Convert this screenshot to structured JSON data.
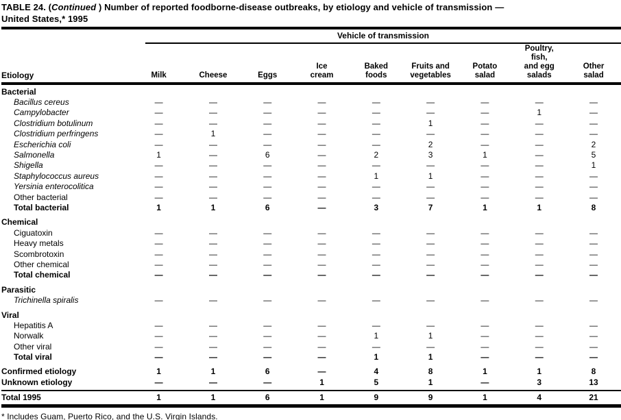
{
  "title": {
    "prefix": "TABLE 24. (",
    "italic": "Continued",
    "suffix": " ) Number of reported foodborne-disease outbreaks, by etiology and vehicle of transmission —\nUnited States,* 1995"
  },
  "table": {
    "spanner": "Vehicle of transmission",
    "etiology_header": "Etiology",
    "columns": [
      "Milk",
      "Cheese",
      "Eggs",
      "Ice\ncream",
      "Baked\nfoods",
      "Fruits and\nvegetables",
      "Potato\nsalad",
      "Poultry,\nfish,\nand egg\nsalads",
      "Other\nsalad"
    ],
    "rows": [
      {
        "label": "Bacterial",
        "style": "section",
        "indent": false,
        "gap": false,
        "values": []
      },
      {
        "label": "Bacillus cereus",
        "style": "species",
        "indent": true,
        "gap": false,
        "values": [
          "—",
          "—",
          "—",
          "—",
          "—",
          "—",
          "—",
          "—",
          "—"
        ]
      },
      {
        "label": "Campylobacter",
        "style": "species",
        "indent": true,
        "gap": false,
        "values": [
          "—",
          "—",
          "—",
          "—",
          "—",
          "—",
          "—",
          "1",
          "—"
        ]
      },
      {
        "label": "Clostridium botulinum",
        "style": "species",
        "indent": true,
        "gap": false,
        "values": [
          "—",
          "—",
          "—",
          "—",
          "—",
          "1",
          "—",
          "—",
          "—"
        ]
      },
      {
        "label": "Clostridium perfringens",
        "style": "species",
        "indent": true,
        "gap": false,
        "values": [
          "—",
          "1",
          "—",
          "—",
          "—",
          "—",
          "—",
          "—",
          "—"
        ]
      },
      {
        "label": "Escherichia coli",
        "style": "species",
        "indent": true,
        "gap": false,
        "values": [
          "—",
          "—",
          "—",
          "—",
          "—",
          "2",
          "—",
          "—",
          "2"
        ]
      },
      {
        "label": "Salmonella",
        "style": "species",
        "indent": true,
        "gap": false,
        "values": [
          "1",
          "—",
          "6",
          "—",
          "2",
          "3",
          "1",
          "—",
          "5"
        ]
      },
      {
        "label": "Shigella",
        "style": "species",
        "indent": true,
        "gap": false,
        "values": [
          "—",
          "—",
          "—",
          "—",
          "—",
          "—",
          "—",
          "—",
          "1"
        ]
      },
      {
        "label": "Staphylococcus aureus",
        "style": "species",
        "indent": true,
        "gap": false,
        "values": [
          "—",
          "—",
          "—",
          "—",
          "1",
          "1",
          "—",
          "—",
          "—"
        ]
      },
      {
        "label": "Yersinia enterocolitica",
        "style": "species",
        "indent": true,
        "gap": false,
        "values": [
          "—",
          "—",
          "—",
          "—",
          "—",
          "—",
          "—",
          "—",
          "—"
        ]
      },
      {
        "label": "Other bacterial",
        "style": "plain",
        "indent": true,
        "gap": false,
        "values": [
          "—",
          "—",
          "—",
          "—",
          "—",
          "—",
          "—",
          "—",
          "—"
        ]
      },
      {
        "label": "Total bacterial",
        "style": "total",
        "indent": true,
        "gap": false,
        "values": [
          "1",
          "1",
          "6",
          "—",
          "3",
          "7",
          "1",
          "1",
          "8"
        ]
      },
      {
        "label": "Chemical",
        "style": "section",
        "indent": false,
        "gap": true,
        "values": []
      },
      {
        "label": "Ciguatoxin",
        "style": "plain",
        "indent": true,
        "gap": false,
        "values": [
          "—",
          "—",
          "—",
          "—",
          "—",
          "—",
          "—",
          "—",
          "—"
        ]
      },
      {
        "label": "Heavy metals",
        "style": "plain",
        "indent": true,
        "gap": false,
        "values": [
          "—",
          "—",
          "—",
          "—",
          "—",
          "—",
          "—",
          "—",
          "—"
        ]
      },
      {
        "label": "Scombrotoxin",
        "style": "plain",
        "indent": true,
        "gap": false,
        "values": [
          "—",
          "—",
          "—",
          "—",
          "—",
          "—",
          "—",
          "—",
          "—"
        ]
      },
      {
        "label": "Other chemical",
        "style": "plain",
        "indent": true,
        "gap": false,
        "values": [
          "—",
          "—",
          "—",
          "—",
          "—",
          "—",
          "—",
          "—",
          "—"
        ]
      },
      {
        "label": "Total chemical",
        "style": "total",
        "indent": true,
        "gap": false,
        "values": [
          "—",
          "—",
          "—",
          "—",
          "—",
          "—",
          "—",
          "—",
          "—"
        ]
      },
      {
        "label": "Parasitic",
        "style": "section",
        "indent": false,
        "gap": true,
        "values": []
      },
      {
        "label": "Trichinella spiralis",
        "style": "species",
        "indent": true,
        "gap": false,
        "values": [
          "—",
          "—",
          "—",
          "—",
          "—",
          "—",
          "—",
          "—",
          "—"
        ]
      },
      {
        "label": "Viral",
        "style": "section",
        "indent": false,
        "gap": true,
        "values": []
      },
      {
        "label": "Hepatitis A",
        "style": "plain",
        "indent": true,
        "gap": false,
        "values": [
          "—",
          "—",
          "—",
          "—",
          "—",
          "—",
          "—",
          "—",
          "—"
        ]
      },
      {
        "label": "Norwalk",
        "style": "plain",
        "indent": true,
        "gap": false,
        "values": [
          "—",
          "—",
          "—",
          "—",
          "1",
          "1",
          "—",
          "—",
          "—"
        ]
      },
      {
        "label": "Other viral",
        "style": "plain",
        "indent": true,
        "gap": false,
        "values": [
          "—",
          "—",
          "—",
          "—",
          "—",
          "—",
          "—",
          "—",
          "—"
        ]
      },
      {
        "label": "Total viral",
        "style": "total",
        "indent": true,
        "gap": false,
        "values": [
          "—",
          "—",
          "—",
          "—",
          "1",
          "1",
          "—",
          "—",
          "—"
        ]
      },
      {
        "label": "Confirmed etiology",
        "style": "total",
        "indent": false,
        "gap": true,
        "values": [
          "1",
          "1",
          "6",
          "—",
          "4",
          "8",
          "1",
          "1",
          "8"
        ]
      },
      {
        "label": "Unknown etiology",
        "style": "total",
        "indent": false,
        "gap": false,
        "values": [
          "—",
          "—",
          "—",
          "1",
          "5",
          "1",
          "—",
          "3",
          "13"
        ]
      },
      {
        "label": "Total 1995",
        "style": "grand",
        "indent": false,
        "gap": false,
        "rule_before": true,
        "values": [
          "1",
          "1",
          "6",
          "1",
          "9",
          "9",
          "1",
          "4",
          "21"
        ]
      }
    ]
  },
  "footnote": "* Includes Guam, Puerto Rico, and the U.S. Virgin Islands."
}
